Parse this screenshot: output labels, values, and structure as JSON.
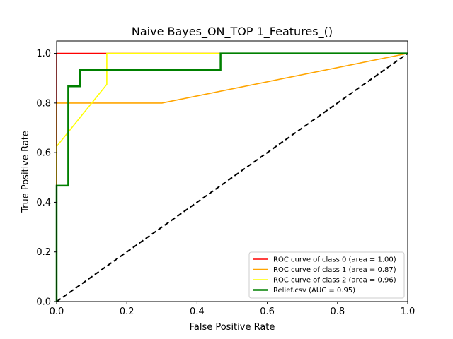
{
  "chart_data": {
    "type": "line",
    "title": "Naive Bayes_ON_TOP 1_Features_()",
    "xlabel": "False Positive Rate",
    "ylabel": "True Positive Rate",
    "xlim": [
      0,
      1
    ],
    "ylim": [
      0,
      1.05
    ],
    "xticks": [
      "0.0",
      "0.2",
      "0.4",
      "0.6",
      "0.8",
      "1.0"
    ],
    "yticks": [
      "0.0",
      "0.2",
      "0.4",
      "0.6",
      "0.8",
      "1.0"
    ],
    "grid": false,
    "legend_position": "bottom-right",
    "series": [
      {
        "name": "ROC curve of class 0 (area = 1.00)",
        "color": "#ff0000",
        "x": [
          0,
          0,
          0.143,
          1.0
        ],
        "y": [
          0,
          1.0,
          1.0,
          1.0
        ]
      },
      {
        "name": "ROC curve of class 1 (area = 0.87)",
        "color": "#ffa500",
        "x": [
          0,
          0,
          0.3,
          1.0
        ],
        "y": [
          0,
          0.8,
          0.8,
          1.0
        ]
      },
      {
        "name": "ROC curve of class 2 (area = 0.96)",
        "color": "#ffff00",
        "x": [
          0,
          0,
          0.143,
          0.143,
          1.0
        ],
        "y": [
          0,
          0.625,
          0.875,
          1.0,
          1.0
        ]
      },
      {
        "name": "Relief.csv (AUC = 0.95)",
        "color": "#008000",
        "step": true,
        "x": [
          0,
          0,
          0,
          0.033,
          0.033,
          0.067,
          0.067,
          0.467,
          0.467,
          1.0
        ],
        "y": [
          0,
          0.133,
          0.467,
          0.467,
          0.867,
          0.867,
          0.933,
          0.933,
          1.0,
          1.0
        ]
      }
    ],
    "reference_line": {
      "x": [
        0,
        1
      ],
      "y": [
        0,
        1
      ],
      "color": "#000000",
      "style": "dashed"
    }
  }
}
